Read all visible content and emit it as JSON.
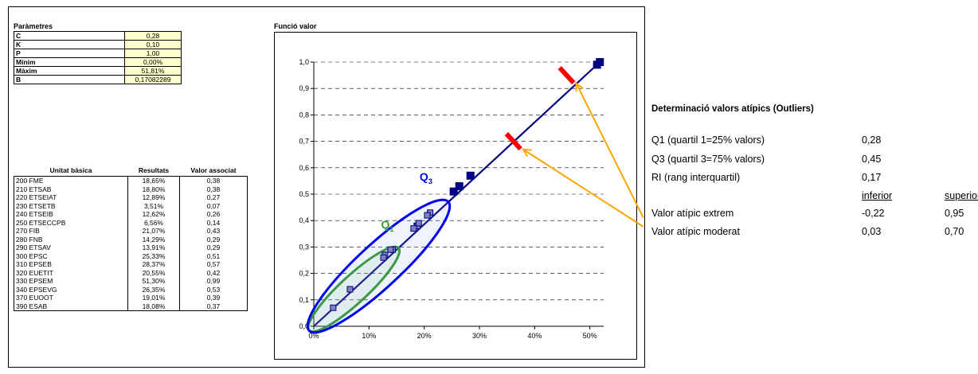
{
  "params": {
    "title": "Paràmetres",
    "rows": [
      {
        "label": "C",
        "value": "0,28"
      },
      {
        "label": "K",
        "value": "0,10"
      },
      {
        "label": "P",
        "value": "1,00"
      },
      {
        "label": "Mínim",
        "value": "0,00%"
      },
      {
        "label": "Màxim",
        "value": "51,81%"
      },
      {
        "label": "B",
        "value": "0,17082289"
      }
    ]
  },
  "units_table": {
    "headers": [
      "Unitat bàsica",
      "Resultats",
      "Valor associat"
    ],
    "rows": [
      [
        "200 FME",
        "18,65%",
        "0,38"
      ],
      [
        "210 ETSAB",
        "18,80%",
        "0,38"
      ],
      [
        "220 ETSEIAT",
        "12,89%",
        "0,27"
      ],
      [
        "230 ETSETB",
        "3,51%",
        "0,07"
      ],
      [
        "240 ETSEIB",
        "12,62%",
        "0,26"
      ],
      [
        "250 ETSECCPB",
        "6,56%",
        "0,14"
      ],
      [
        "270 FIB",
        "21,07%",
        "0,43"
      ],
      [
        "280 FNB",
        "14,29%",
        "0,29"
      ],
      [
        "290 ETSAV",
        "13,91%",
        "0,29"
      ],
      [
        "300 EPSC",
        "25,33%",
        "0,51"
      ],
      [
        "310 EPSEB",
        "28,37%",
        "0,57"
      ],
      [
        "320 EUETIT",
        "20,55%",
        "0,42"
      ],
      [
        "330 EPSEM",
        "51,30%",
        "0,99"
      ],
      [
        "340 EPSEVG",
        "26,35%",
        "0,53"
      ],
      [
        "370 EUOOT",
        "19,01%",
        "0,39"
      ],
      [
        "390 ESAB",
        "18,08%",
        "0,37"
      ]
    ]
  },
  "chart_data": {
    "type": "line",
    "title": "Funció valor",
    "xlabel": "",
    "ylabel": "",
    "xlim": [
      0,
      0.525
    ],
    "ylim": [
      0,
      1.0
    ],
    "x_ticks": [
      "0%",
      "10%",
      "20%",
      "30%",
      "40%",
      "50%"
    ],
    "y_ticks": [
      "0,0",
      "0,1",
      "0,2",
      "0,3",
      "0,4",
      "0,5",
      "0,6",
      "0,7",
      "0,8",
      "0,9",
      "1,0"
    ],
    "grid": "horizontal dashed",
    "line": {
      "x": [
        0,
        0.5181
      ],
      "y": [
        0,
        1.0
      ],
      "color": "#000080"
    },
    "points": {
      "x": [
        0.1865,
        0.188,
        0.1289,
        0.0351,
        0.1262,
        0.0656,
        0.2107,
        0.1429,
        0.1391,
        0.2533,
        0.2837,
        0.2055,
        0.513,
        0.2635,
        0.1901,
        0.1808,
        0.5181
      ],
      "y": [
        0.38,
        0.38,
        0.27,
        0.07,
        0.26,
        0.14,
        0.43,
        0.29,
        0.29,
        0.51,
        0.57,
        0.42,
        0.99,
        0.53,
        0.39,
        0.37,
        1.0
      ],
      "color": "#000080",
      "inside_color": "#8080c0"
    },
    "markers": [
      {
        "x": 0.3617,
        "y": 0.7,
        "color": "#ff0000"
      },
      {
        "x": 0.4579,
        "y": 0.95,
        "color": "#ff0000"
      }
    ],
    "ellipses": [
      {
        "label": "Q",
        "sub": "1",
        "x_from": 0.0,
        "y_from": 0.0,
        "x_to": 0.145,
        "y_to": 0.28,
        "color": "#339933"
      },
      {
        "label": "Q",
        "sub": "3",
        "x_from": 0.0,
        "y_from": 0.0,
        "x_to": 0.235,
        "y_to": 0.455,
        "color": "#0000ee"
      }
    ],
    "arrow_color": "#ffa500"
  },
  "outliers": {
    "title": "Determinació valors atípics (Outliers)",
    "q1_label": "Q1 (quartil 1=25% valors)",
    "q1_value": "0,28",
    "q3_label": "Q3 (quartil 3=75% valors)",
    "q3_value": "0,45",
    "ri_label": "RI (rang interquartil)",
    "ri_value": "0,17",
    "col_inferior": "inferior",
    "col_superior": "superior",
    "extrem_label": "Valor atípic extrem",
    "extrem_inf": "-0,22",
    "extrem_sup": "0,95",
    "moderat_label": "Valor atípic moderat",
    "moderat_inf": "0,03",
    "moderat_sup": "0,70"
  }
}
